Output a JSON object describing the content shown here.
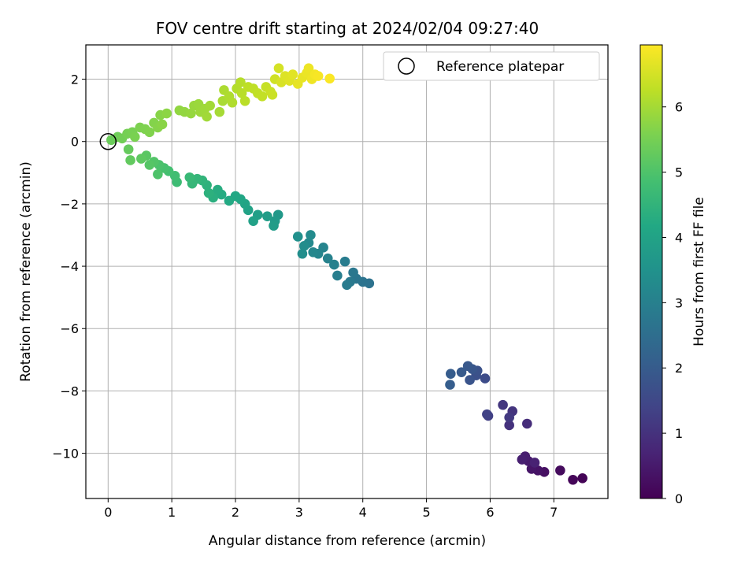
{
  "chart_data": {
    "type": "scatter",
    "title": "FOV centre drift starting at 2024/02/04 09:27:40",
    "xlabel": "Angular distance from reference (arcmin)",
    "ylabel": "Rotation from reference (arcmin)",
    "xlim": [
      -0.35,
      7.85
    ],
    "ylim": [
      -11.45,
      3.1
    ],
    "xticks": [
      0,
      1,
      2,
      3,
      4,
      5,
      6,
      7
    ],
    "yticks": [
      -10,
      -8,
      -6,
      -4,
      -2,
      0,
      2
    ],
    "grid": true,
    "legend": {
      "placement": "top-right",
      "entries": [
        "Reference platepar"
      ]
    },
    "reference_point": {
      "x": 0,
      "y": 0
    },
    "colorbar": {
      "label": "Hours from first FF file",
      "range": [
        0,
        6.95
      ],
      "ticks": [
        0,
        1,
        2,
        3,
        4,
        5,
        6
      ],
      "colormap": "viridis"
    },
    "points": [
      {
        "x": 7.45,
        "y": -10.8,
        "h": 0.05
      },
      {
        "x": 7.3,
        "y": -10.85,
        "h": 0.1
      },
      {
        "x": 7.1,
        "y": -10.55,
        "h": 0.2
      },
      {
        "x": 6.85,
        "y": -10.6,
        "h": 0.3
      },
      {
        "x": 6.75,
        "y": -10.55,
        "h": 0.35
      },
      {
        "x": 6.65,
        "y": -10.5,
        "h": 0.4
      },
      {
        "x": 6.6,
        "y": -10.25,
        "h": 0.5
      },
      {
        "x": 6.55,
        "y": -10.1,
        "h": 0.55
      },
      {
        "x": 6.5,
        "y": -10.2,
        "h": 0.6
      },
      {
        "x": 6.7,
        "y": -10.3,
        "h": 0.65
      },
      {
        "x": 6.58,
        "y": -9.05,
        "h": 0.9
      },
      {
        "x": 6.3,
        "y": -9.1,
        "h": 1.0
      },
      {
        "x": 6.35,
        "y": -8.65,
        "h": 1.05
      },
      {
        "x": 6.2,
        "y": -8.45,
        "h": 1.1
      },
      {
        "x": 6.3,
        "y": -8.85,
        "h": 1.15
      },
      {
        "x": 5.97,
        "y": -8.8,
        "h": 1.3
      },
      {
        "x": 5.95,
        "y": -8.75,
        "h": 1.35
      },
      {
        "x": 5.92,
        "y": -7.6,
        "h": 1.6
      },
      {
        "x": 5.78,
        "y": -7.5,
        "h": 1.7
      },
      {
        "x": 5.8,
        "y": -7.35,
        "h": 1.75
      },
      {
        "x": 5.68,
        "y": -7.65,
        "h": 1.8
      },
      {
        "x": 5.72,
        "y": -7.3,
        "h": 1.85
      },
      {
        "x": 5.65,
        "y": -7.2,
        "h": 1.9
      },
      {
        "x": 5.55,
        "y": -7.4,
        "h": 1.95
      },
      {
        "x": 5.38,
        "y": -7.45,
        "h": 2.0
      },
      {
        "x": 5.37,
        "y": -7.8,
        "h": 2.05
      },
      {
        "x": 4.1,
        "y": -4.55,
        "h": 2.6
      },
      {
        "x": 4.0,
        "y": -4.5,
        "h": 2.65
      },
      {
        "x": 3.9,
        "y": -4.4,
        "h": 2.7
      },
      {
        "x": 3.85,
        "y": -4.2,
        "h": 2.75
      },
      {
        "x": 3.8,
        "y": -4.5,
        "h": 2.8
      },
      {
        "x": 3.75,
        "y": -4.6,
        "h": 2.85
      },
      {
        "x": 3.72,
        "y": -3.85,
        "h": 2.9
      },
      {
        "x": 3.6,
        "y": -4.3,
        "h": 2.95
      },
      {
        "x": 3.55,
        "y": -3.95,
        "h": 3.0
      },
      {
        "x": 3.45,
        "y": -3.75,
        "h": 3.05
      },
      {
        "x": 3.38,
        "y": -3.4,
        "h": 3.1
      },
      {
        "x": 3.3,
        "y": -3.6,
        "h": 3.15
      },
      {
        "x": 3.22,
        "y": -3.55,
        "h": 3.2
      },
      {
        "x": 3.15,
        "y": -3.25,
        "h": 3.25
      },
      {
        "x": 3.18,
        "y": -3.0,
        "h": 3.3
      },
      {
        "x": 3.08,
        "y": -3.35,
        "h": 3.35
      },
      {
        "x": 3.05,
        "y": -3.6,
        "h": 3.4
      },
      {
        "x": 2.98,
        "y": -3.05,
        "h": 3.45
      },
      {
        "x": 2.67,
        "y": -2.35,
        "h": 3.7
      },
      {
        "x": 2.62,
        "y": -2.55,
        "h": 3.75
      },
      {
        "x": 2.6,
        "y": -2.7,
        "h": 3.8
      },
      {
        "x": 2.5,
        "y": -2.4,
        "h": 3.85
      },
      {
        "x": 2.35,
        "y": -2.35,
        "h": 3.9
      },
      {
        "x": 2.28,
        "y": -2.55,
        "h": 3.95
      },
      {
        "x": 2.2,
        "y": -2.2,
        "h": 4.0
      },
      {
        "x": 2.15,
        "y": -2.0,
        "h": 4.05
      },
      {
        "x": 2.08,
        "y": -1.85,
        "h": 4.1
      },
      {
        "x": 2.0,
        "y": -1.75,
        "h": 4.15
      },
      {
        "x": 1.9,
        "y": -1.9,
        "h": 4.2
      },
      {
        "x": 1.78,
        "y": -1.7,
        "h": 4.25
      },
      {
        "x": 1.72,
        "y": -1.55,
        "h": 4.3
      },
      {
        "x": 1.65,
        "y": -1.8,
        "h": 4.35
      },
      {
        "x": 1.58,
        "y": -1.65,
        "h": 4.4
      },
      {
        "x": 1.55,
        "y": -1.4,
        "h": 4.45
      },
      {
        "x": 1.48,
        "y": -1.25,
        "h": 4.5
      },
      {
        "x": 1.4,
        "y": -1.2,
        "h": 4.55
      },
      {
        "x": 1.32,
        "y": -1.35,
        "h": 4.6
      },
      {
        "x": 1.28,
        "y": -1.15,
        "h": 4.65
      },
      {
        "x": 1.08,
        "y": -1.3,
        "h": 4.75
      },
      {
        "x": 1.05,
        "y": -1.1,
        "h": 4.8
      },
      {
        "x": 0.95,
        "y": -0.95,
        "h": 4.85
      },
      {
        "x": 0.88,
        "y": -0.85,
        "h": 4.9
      },
      {
        "x": 0.8,
        "y": -0.75,
        "h": 4.95
      },
      {
        "x": 0.78,
        "y": -1.05,
        "h": 5.0
      },
      {
        "x": 0.72,
        "y": -0.65,
        "h": 5.05
      },
      {
        "x": 0.65,
        "y": -0.75,
        "h": 5.1
      },
      {
        "x": 0.6,
        "y": -0.45,
        "h": 5.15
      },
      {
        "x": 0.52,
        "y": -0.55,
        "h": 5.2
      },
      {
        "x": 0.35,
        "y": -0.6,
        "h": 5.25
      },
      {
        "x": 0.32,
        "y": -0.25,
        "h": 5.3
      },
      {
        "x": 0.05,
        "y": 0.05,
        "h": 5.35
      },
      {
        "x": 0.15,
        "y": 0.15,
        "h": 5.4
      },
      {
        "x": 0.22,
        "y": 0.1,
        "h": 5.45
      },
      {
        "x": 0.3,
        "y": 0.25,
        "h": 5.5
      },
      {
        "x": 0.38,
        "y": 0.3,
        "h": 5.52
      },
      {
        "x": 0.42,
        "y": 0.15,
        "h": 5.55
      },
      {
        "x": 0.5,
        "y": 0.45,
        "h": 5.58
      },
      {
        "x": 0.58,
        "y": 0.4,
        "h": 5.6
      },
      {
        "x": 0.65,
        "y": 0.3,
        "h": 5.62
      },
      {
        "x": 0.72,
        "y": 0.6,
        "h": 5.65
      },
      {
        "x": 0.78,
        "y": 0.45,
        "h": 5.68
      },
      {
        "x": 0.82,
        "y": 0.85,
        "h": 5.7
      },
      {
        "x": 0.85,
        "y": 0.55,
        "h": 5.72
      },
      {
        "x": 0.92,
        "y": 0.9,
        "h": 5.75
      },
      {
        "x": 1.12,
        "y": 1.0,
        "h": 5.8
      },
      {
        "x": 1.2,
        "y": 0.95,
        "h": 5.82
      },
      {
        "x": 1.3,
        "y": 0.9,
        "h": 5.85
      },
      {
        "x": 1.35,
        "y": 1.15,
        "h": 5.88
      },
      {
        "x": 1.42,
        "y": 1.2,
        "h": 5.9
      },
      {
        "x": 1.45,
        "y": 0.95,
        "h": 5.92
      },
      {
        "x": 1.52,
        "y": 1.05,
        "h": 5.94
      },
      {
        "x": 1.55,
        "y": 0.8,
        "h": 5.96
      },
      {
        "x": 1.6,
        "y": 1.15,
        "h": 5.98
      },
      {
        "x": 1.75,
        "y": 0.95,
        "h": 6.02
      },
      {
        "x": 1.8,
        "y": 1.3,
        "h": 6.05
      },
      {
        "x": 1.82,
        "y": 1.65,
        "h": 6.08
      },
      {
        "x": 1.9,
        "y": 1.45,
        "h": 6.1
      },
      {
        "x": 1.95,
        "y": 1.25,
        "h": 6.12
      },
      {
        "x": 2.02,
        "y": 1.7,
        "h": 6.15
      },
      {
        "x": 2.08,
        "y": 1.9,
        "h": 6.18
      },
      {
        "x": 2.1,
        "y": 1.55,
        "h": 6.2
      },
      {
        "x": 2.15,
        "y": 1.3,
        "h": 6.22
      },
      {
        "x": 2.2,
        "y": 1.75,
        "h": 6.25
      },
      {
        "x": 2.28,
        "y": 1.7,
        "h": 6.28
      },
      {
        "x": 2.35,
        "y": 1.55,
        "h": 6.3
      },
      {
        "x": 2.42,
        "y": 1.45,
        "h": 6.32
      },
      {
        "x": 2.48,
        "y": 1.75,
        "h": 6.35
      },
      {
        "x": 2.55,
        "y": 1.6,
        "h": 6.38
      },
      {
        "x": 2.58,
        "y": 1.5,
        "h": 6.4
      },
      {
        "x": 2.62,
        "y": 2.0,
        "h": 6.45
      },
      {
        "x": 2.68,
        "y": 2.35,
        "h": 6.5
      },
      {
        "x": 2.72,
        "y": 1.9,
        "h": 6.55
      },
      {
        "x": 2.78,
        "y": 2.1,
        "h": 6.6
      },
      {
        "x": 2.85,
        "y": 1.95,
        "h": 6.62
      },
      {
        "x": 2.9,
        "y": 2.15,
        "h": 6.65
      },
      {
        "x": 2.98,
        "y": 1.85,
        "h": 6.7
      },
      {
        "x": 3.05,
        "y": 2.05,
        "h": 6.72
      },
      {
        "x": 3.12,
        "y": 2.2,
        "h": 6.75
      },
      {
        "x": 3.15,
        "y": 2.35,
        "h": 6.78
      },
      {
        "x": 3.2,
        "y": 2.0,
        "h": 6.8
      },
      {
        "x": 3.25,
        "y": 2.15,
        "h": 6.85
      },
      {
        "x": 3.3,
        "y": 2.1,
        "h": 6.88
      },
      {
        "x": 3.48,
        "y": 2.02,
        "h": 6.92
      }
    ]
  }
}
